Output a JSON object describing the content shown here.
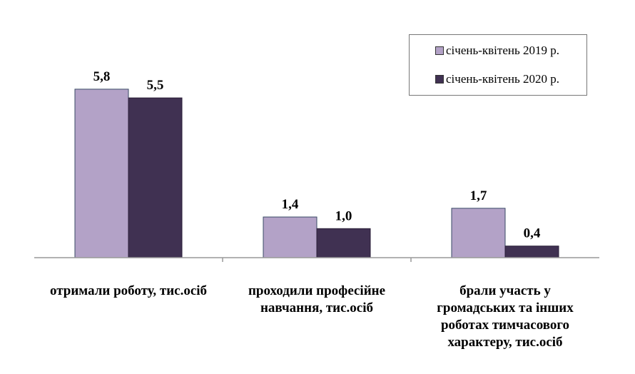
{
  "chart_data": {
    "type": "bar",
    "categories": [
      "отримали роботу, тис.осіб",
      "проходили професійне навчання, тис.осіб",
      "брали участь у громадських та інших роботах тимчасового характеру, тис.осіб"
    ],
    "series": [
      {
        "name": "січень-квітень  2019 р.",
        "values": [
          5.8,
          1.4,
          1.7
        ],
        "labels": [
          "5,8",
          "1,4",
          "1,7"
        ],
        "color": "#b3a2c7"
      },
      {
        "name": "січень-квітень  2020 р.",
        "values": [
          5.5,
          1.0,
          0.4
        ],
        "labels": [
          "5,5",
          "1,0",
          "0,4"
        ],
        "color": "#403152"
      }
    ],
    "ylim": [
      0,
      6.5
    ],
    "legend": "top-right",
    "grid": false,
    "title": "",
    "xlabel": "",
    "ylabel": ""
  }
}
